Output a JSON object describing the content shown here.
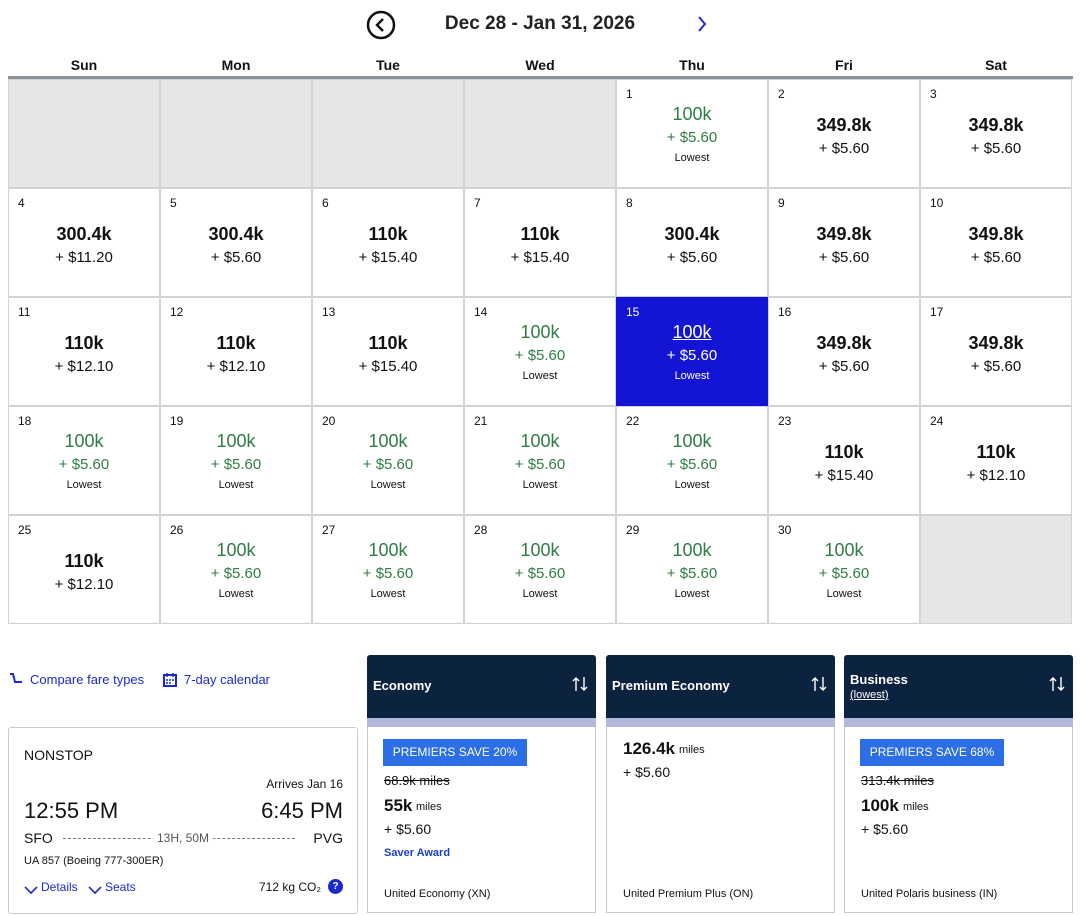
{
  "header": {
    "title": "Dec 28 - Jan 31, 2026"
  },
  "calendar": {
    "weekdays": [
      "Sun",
      "Mon",
      "Tue",
      "Wed",
      "Thu",
      "Fri",
      "Sat"
    ],
    "weeks": [
      [
        null,
        null,
        null,
        null,
        {
          "day": "1",
          "miles": "100k",
          "fee": "+ $5.60",
          "note": "Lowest"
        },
        {
          "day": "2",
          "miles": "349.8k",
          "fee": "+ $5.60"
        },
        {
          "day": "3",
          "miles": "349.8k",
          "fee": "+ $5.60"
        }
      ],
      [
        {
          "day": "4",
          "miles": "300.4k",
          "fee": "+ $11.20"
        },
        {
          "day": "5",
          "miles": "300.4k",
          "fee": "+ $5.60"
        },
        {
          "day": "6",
          "miles": "110k",
          "fee": "+ $15.40"
        },
        {
          "day": "7",
          "miles": "110k",
          "fee": "+ $15.40"
        },
        {
          "day": "8",
          "miles": "300.4k",
          "fee": "+ $5.60"
        },
        {
          "day": "9",
          "miles": "349.8k",
          "fee": "+ $5.60"
        },
        {
          "day": "10",
          "miles": "349.8k",
          "fee": "+ $5.60"
        }
      ],
      [
        {
          "day": "11",
          "miles": "110k",
          "fee": "+ $12.10"
        },
        {
          "day": "12",
          "miles": "110k",
          "fee": "+ $12.10"
        },
        {
          "day": "13",
          "miles": "110k",
          "fee": "+ $15.40"
        },
        {
          "day": "14",
          "miles": "100k",
          "fee": "+ $5.60",
          "note": "Lowest"
        },
        {
          "day": "15",
          "miles": "100k",
          "fee": "+ $5.60",
          "note": "Lowest",
          "selected": true
        },
        {
          "day": "16",
          "miles": "349.8k",
          "fee": "+ $5.60"
        },
        {
          "day": "17",
          "miles": "349.8k",
          "fee": "+ $5.60"
        }
      ],
      [
        {
          "day": "18",
          "miles": "100k",
          "fee": "+ $5.60",
          "note": "Lowest"
        },
        {
          "day": "19",
          "miles": "100k",
          "fee": "+ $5.60",
          "note": "Lowest"
        },
        {
          "day": "20",
          "miles": "100k",
          "fee": "+ $5.60",
          "note": "Lowest"
        },
        {
          "day": "21",
          "miles": "100k",
          "fee": "+ $5.60",
          "note": "Lowest"
        },
        {
          "day": "22",
          "miles": "100k",
          "fee": "+ $5.60",
          "note": "Lowest"
        },
        {
          "day": "23",
          "miles": "110k",
          "fee": "+ $15.40"
        },
        {
          "day": "24",
          "miles": "110k",
          "fee": "+ $12.10"
        }
      ],
      [
        {
          "day": "25",
          "miles": "110k",
          "fee": "+ $12.10"
        },
        {
          "day": "26",
          "miles": "100k",
          "fee": "+ $5.60",
          "note": "Lowest"
        },
        {
          "day": "27",
          "miles": "100k",
          "fee": "+ $5.60",
          "note": "Lowest"
        },
        {
          "day": "28",
          "miles": "100k",
          "fee": "+ $5.60",
          "note": "Lowest"
        },
        {
          "day": "29",
          "miles": "100k",
          "fee": "+ $5.60",
          "note": "Lowest"
        },
        {
          "day": "30",
          "miles": "100k",
          "fee": "+ $5.60",
          "note": "Lowest"
        },
        null
      ]
    ]
  },
  "links": [
    "Compare fare types",
    "7-day calendar"
  ],
  "flight": {
    "stops": "NONSTOP",
    "arrives": "Arrives Jan 16",
    "depart_time": "12:55 PM",
    "arrive_time": "6:45 PM",
    "origin": "SFO",
    "duration": "13H, 50M",
    "destination": "PVG",
    "flight": "UA 857 (Boeing 777-300ER)",
    "details": "Details",
    "seats": "Seats",
    "emissions": "712 kg CO₂"
  },
  "fares": [
    {
      "header": "Economy",
      "badge": "PREMIERS SAVE 20%",
      "original": "68.9k miles",
      "miles": "55k",
      "unit": "miles",
      "fee": "+ $5.60",
      "tag": "Saver Award",
      "fare_class": "United Economy (XN)"
    },
    {
      "header": "Premium Economy",
      "miles": "126.4k",
      "unit": "miles",
      "fee": "+ $5.60",
      "fare_class": "United Premium Plus (ON)"
    },
    {
      "header": "Business",
      "subheader": "(lowest)",
      "badge": "PREMIERS SAVE 68%",
      "original": "313.4k miles",
      "miles": "100k",
      "unit": "miles",
      "fee": "+ $5.60",
      "fare_class": "United Polaris business (IN)"
    }
  ]
}
